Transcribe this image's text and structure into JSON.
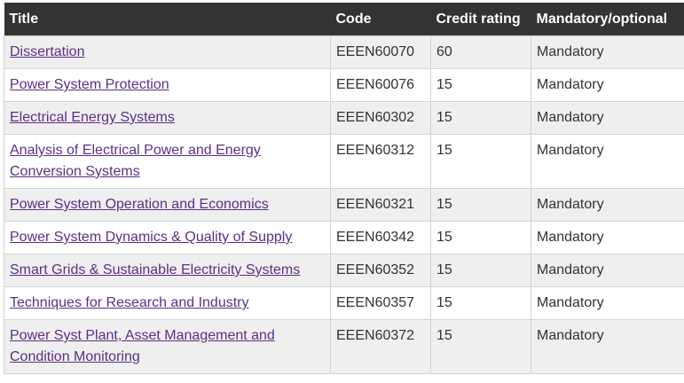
{
  "table": {
    "headers": [
      "Title",
      "Code",
      "Credit rating",
      "Mandatory/optional"
    ],
    "rows": [
      [
        "Dissertation",
        "EEEN60070",
        "60",
        "Mandatory"
      ],
      [
        "Power System Protection",
        "EEEN60076",
        "15",
        "Mandatory"
      ],
      [
        "Electrical Energy Systems",
        "EEEN60302",
        "15",
        "Mandatory"
      ],
      [
        "Analysis of Electrical Power and Energy Conversion Systems",
        "EEEN60312",
        "15",
        "Mandatory"
      ],
      [
        "Power System Operation and Economics",
        "EEEN60321",
        "15",
        "Mandatory"
      ],
      [
        "Power System Dynamics & Quality of Supply",
        "EEEN60342",
        "15",
        "Mandatory"
      ],
      [
        "Smart Grids & Sustainable Electricity Systems",
        "EEEN60352",
        "15",
        "Mandatory"
      ],
      [
        "Techniques for Research and Industry",
        "EEEN60357",
        "15",
        "Mandatory"
      ],
      [
        "Power Syst Plant, Asset Management and Condition Monitoring",
        "EEEN60372",
        "15",
        "Mandatory"
      ]
    ]
  }
}
